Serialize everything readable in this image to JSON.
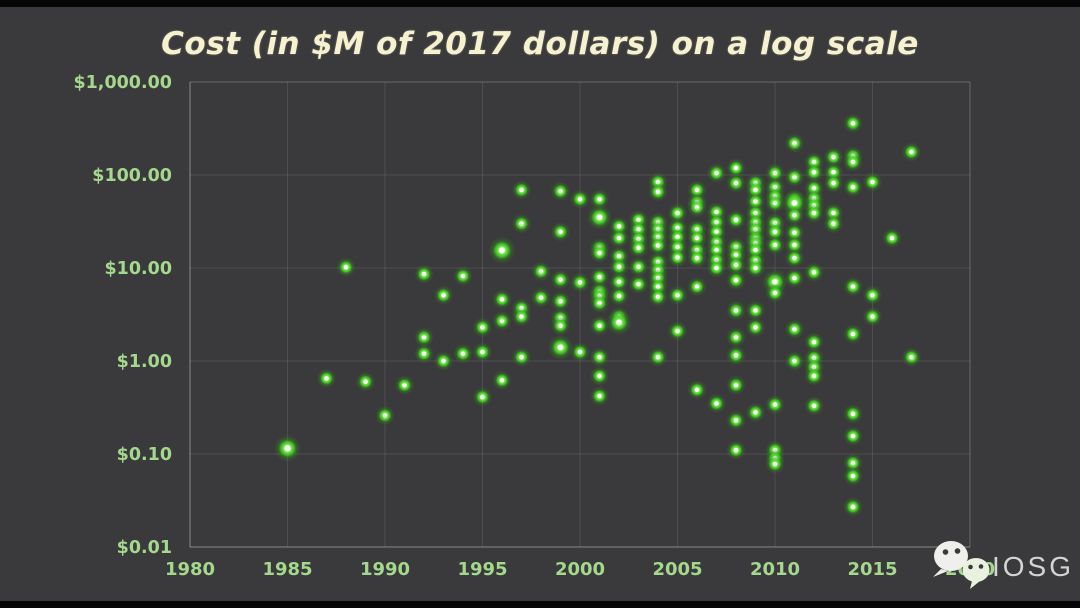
{
  "title": "Cost (in $M of 2017 dollars) on a log scale",
  "watermark": {
    "brand": "IOSG",
    "icon": "wechat-icon"
  },
  "colors": {
    "background": "#3a393b",
    "letterbox": "#060606",
    "title": "#f6f1cf",
    "tick_label": "#a4d88c",
    "grid": "rgba(255,255,255,0.10)",
    "axis": "rgba(255,255,255,0.26)",
    "dot_bright": "#62e637",
    "dot_core": "#ffffff",
    "watermark_text": "#d4d4d4",
    "watermark_bubble": "#efefec",
    "watermark_bubble_front": "#e9f1df"
  },
  "chart_data": {
    "type": "scatter",
    "title": "Cost (in $M of 2017 dollars) on a log scale",
    "xlabel": "",
    "ylabel": "",
    "x_range": [
      1980,
      2020
    ],
    "y_range": [
      0.01,
      1000
    ],
    "y_scale": "log",
    "grid": "on",
    "legend": "none",
    "x_ticks": [
      {
        "value": 1980,
        "label": "1980"
      },
      {
        "value": 1985,
        "label": "1985"
      },
      {
        "value": 1990,
        "label": "1990"
      },
      {
        "value": 1995,
        "label": "1995"
      },
      {
        "value": 2000,
        "label": "2000"
      },
      {
        "value": 2005,
        "label": "2005"
      },
      {
        "value": 2010,
        "label": "2010"
      },
      {
        "value": 2015,
        "label": "2015"
      },
      {
        "value": 2020,
        "label": "2020"
      }
    ],
    "y_ticks": [
      {
        "value": 1000,
        "label": "$1,000.00"
      },
      {
        "value": 100,
        "label": "$100.00"
      },
      {
        "value": 10,
        "label": "$10.00"
      },
      {
        "value": 1,
        "label": "$1.00"
      },
      {
        "value": 0.1,
        "label": "$0.10"
      },
      {
        "value": 0.01,
        "label": "$0.01"
      }
    ],
    "points": [
      [
        1985,
        0.115,
        1.4
      ],
      [
        1987,
        0.65
      ],
      [
        1988,
        10.2
      ],
      [
        1989,
        0.6
      ],
      [
        1990,
        0.26
      ],
      [
        1991,
        0.55
      ],
      [
        1992,
        8.6
      ],
      [
        1992,
        1.8
      ],
      [
        1992,
        1.2
      ],
      [
        1993,
        5.1
      ],
      [
        1993,
        1.0
      ],
      [
        1994,
        8.2
      ],
      [
        1994,
        1.2
      ],
      [
        1995,
        2.3
      ],
      [
        1995,
        1.25
      ],
      [
        1995,
        0.41
      ],
      [
        1996,
        15.5,
        1.4
      ],
      [
        1996,
        4.6
      ],
      [
        1996,
        2.7
      ],
      [
        1996,
        0.62
      ],
      [
        1997,
        69
      ],
      [
        1997,
        30
      ],
      [
        1997,
        3.7
      ],
      [
        1997,
        3.0
      ],
      [
        1997,
        1.1
      ],
      [
        1998,
        9.2
      ],
      [
        1998,
        4.8
      ],
      [
        1999,
        67
      ],
      [
        1999,
        24.5
      ],
      [
        1999,
        7.5
      ],
      [
        1999,
        4.4
      ],
      [
        1999,
        2.9
      ],
      [
        1999,
        2.4
      ],
      [
        1999,
        1.4,
        1.3
      ],
      [
        2000,
        55
      ],
      [
        2000,
        7.0
      ],
      [
        2000,
        1.25
      ],
      [
        2001,
        55
      ],
      [
        2001,
        35,
        1.3
      ],
      [
        2001,
        16.5
      ],
      [
        2001,
        14.5
      ],
      [
        2001,
        8.0
      ],
      [
        2001,
        5.6
      ],
      [
        2001,
        5.0
      ],
      [
        2001,
        4.2
      ],
      [
        2001,
        2.4
      ],
      [
        2001,
        1.1
      ],
      [
        2001,
        0.69
      ],
      [
        2001,
        0.42
      ],
      [
        2002,
        28
      ],
      [
        2002,
        21
      ],
      [
        2002,
        13.4
      ],
      [
        2002,
        10.3
      ],
      [
        2002,
        7.1
      ],
      [
        2002,
        5.0
      ],
      [
        2002,
        3.0
      ],
      [
        2002,
        2.6,
        1.3
      ],
      [
        2003,
        33
      ],
      [
        2003,
        26
      ],
      [
        2003,
        20.5
      ],
      [
        2003,
        16.5
      ],
      [
        2003,
        10.3
      ],
      [
        2003,
        6.7
      ],
      [
        2004,
        84
      ],
      [
        2004,
        66
      ],
      [
        2004,
        31
      ],
      [
        2004,
        26
      ],
      [
        2004,
        21.5
      ],
      [
        2004,
        17.5
      ],
      [
        2004,
        11.6
      ],
      [
        2004,
        9.5
      ],
      [
        2004,
        7.8
      ],
      [
        2004,
        6.3
      ],
      [
        2004,
        4.9
      ],
      [
        2004,
        1.1
      ],
      [
        2005,
        39
      ],
      [
        2005,
        27
      ],
      [
        2005,
        21.5
      ],
      [
        2005,
        16.8
      ],
      [
        2005,
        13
      ],
      [
        2005,
        5.1
      ],
      [
        2005,
        2.1
      ],
      [
        2006,
        69
      ],
      [
        2006,
        51
      ],
      [
        2006,
        45
      ],
      [
        2006,
        26
      ],
      [
        2006,
        21
      ],
      [
        2006,
        15.6
      ],
      [
        2006,
        12.8
      ],
      [
        2006,
        6.3
      ],
      [
        2006,
        0.49
      ],
      [
        2007,
        105
      ],
      [
        2007,
        40
      ],
      [
        2007,
        31
      ],
      [
        2007,
        24.5
      ],
      [
        2007,
        19
      ],
      [
        2007,
        15.6
      ],
      [
        2007,
        12.2
      ],
      [
        2007,
        10
      ],
      [
        2007,
        0.35
      ],
      [
        2008,
        119
      ],
      [
        2008,
        82
      ],
      [
        2008,
        33
      ],
      [
        2008,
        16.8
      ],
      [
        2008,
        13.8
      ],
      [
        2008,
        10.8
      ],
      [
        2008,
        7.4
      ],
      [
        2008,
        3.5
      ],
      [
        2008,
        1.8
      ],
      [
        2008,
        1.15
      ],
      [
        2008,
        0.55
      ],
      [
        2008,
        0.23
      ],
      [
        2008,
        0.11
      ],
      [
        2009,
        82
      ],
      [
        2009,
        69
      ],
      [
        2009,
        52
      ],
      [
        2009,
        39
      ],
      [
        2009,
        31
      ],
      [
        2009,
        26
      ],
      [
        2009,
        21
      ],
      [
        2009,
        18.5
      ],
      [
        2009,
        15.6
      ],
      [
        2009,
        12
      ],
      [
        2009,
        10
      ],
      [
        2009,
        3.5
      ],
      [
        2009,
        2.3
      ],
      [
        2009,
        0.28
      ],
      [
        2010,
        105
      ],
      [
        2010,
        74
      ],
      [
        2010,
        59
      ],
      [
        2010,
        50
      ],
      [
        2010,
        30.5
      ],
      [
        2010,
        24.5
      ],
      [
        2010,
        17.7
      ],
      [
        2010,
        7.1,
        1.3
      ],
      [
        2010,
        5.4
      ],
      [
        2010,
        0.34
      ],
      [
        2010,
        0.11
      ],
      [
        2010,
        0.09
      ],
      [
        2010,
        0.078
      ],
      [
        2011,
        220
      ],
      [
        2011,
        95
      ],
      [
        2011,
        55
      ],
      [
        2011,
        50,
        1.3
      ],
      [
        2011,
        37
      ],
      [
        2011,
        24
      ],
      [
        2011,
        17.7
      ],
      [
        2011,
        12.8
      ],
      [
        2011,
        7.8
      ],
      [
        2011,
        2.2
      ],
      [
        2011,
        1.0
      ],
      [
        2012,
        138
      ],
      [
        2012,
        107
      ],
      [
        2012,
        72
      ],
      [
        2012,
        56
      ],
      [
        2012,
        47
      ],
      [
        2012,
        39
      ],
      [
        2012,
        9.0
      ],
      [
        2012,
        1.6
      ],
      [
        2012,
        1.08
      ],
      [
        2012,
        0.86
      ],
      [
        2012,
        0.69
      ],
      [
        2012,
        0.33
      ],
      [
        2013,
        156
      ],
      [
        2013,
        107
      ],
      [
        2013,
        82
      ],
      [
        2013,
        39
      ],
      [
        2013,
        30
      ],
      [
        2014,
        360
      ],
      [
        2014,
        160
      ],
      [
        2014,
        138
      ],
      [
        2014,
        74
      ],
      [
        2014,
        6.3
      ],
      [
        2014,
        1.95
      ],
      [
        2014,
        0.27
      ],
      [
        2014,
        0.156
      ],
      [
        2014,
        0.08
      ],
      [
        2014,
        0.058
      ],
      [
        2014,
        0.027
      ],
      [
        2015,
        84
      ],
      [
        2015,
        5.1
      ],
      [
        2015,
        3.0
      ],
      [
        2016,
        21
      ],
      [
        2017,
        177
      ],
      [
        2017,
        1.1
      ]
    ]
  }
}
